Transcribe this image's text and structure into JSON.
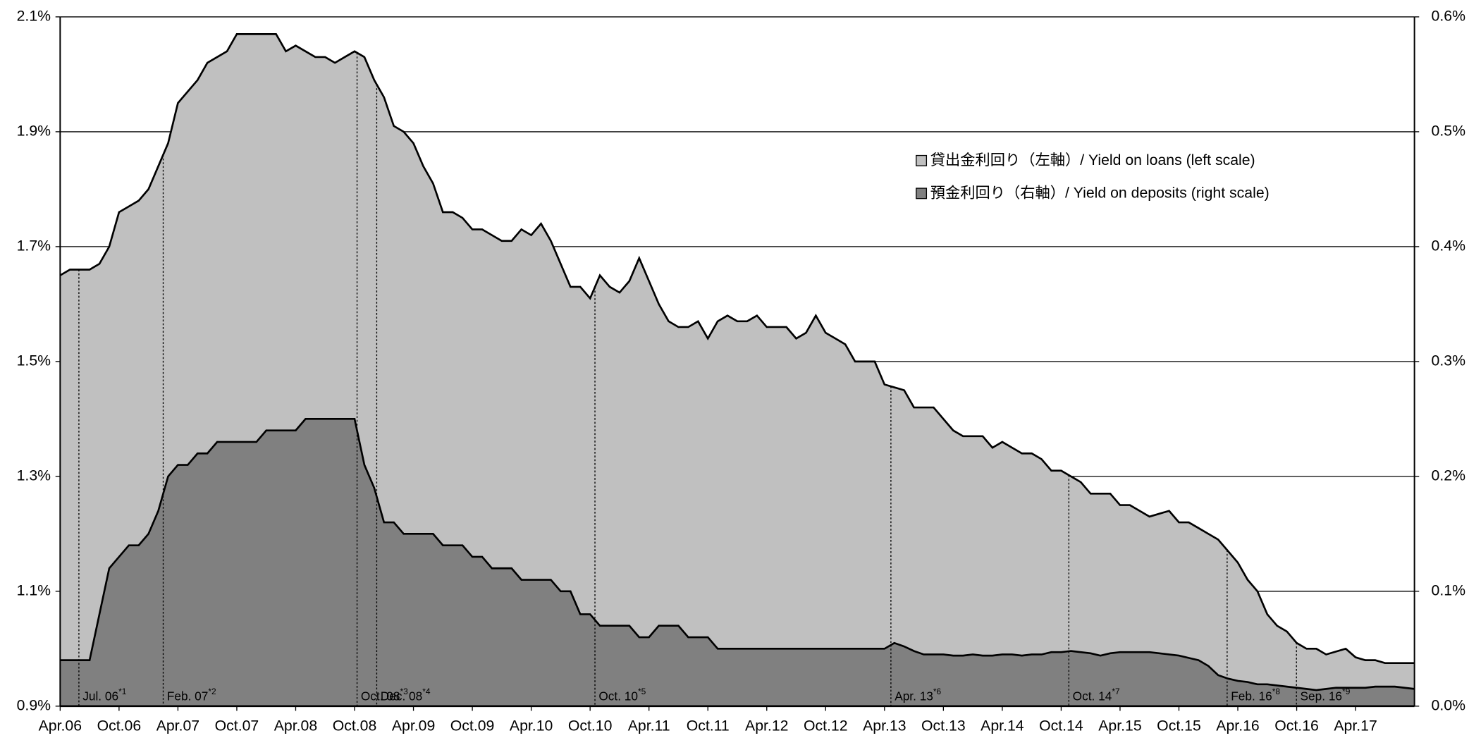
{
  "chart_data": {
    "type": "area",
    "categories": [
      "Apr.06",
      null,
      null,
      null,
      null,
      null,
      "Oct.06",
      null,
      null,
      null,
      null,
      null,
      "Apr.07",
      null,
      null,
      null,
      null,
      null,
      "Oct.07",
      null,
      null,
      null,
      null,
      null,
      "Apr.08",
      null,
      null,
      null,
      null,
      null,
      "Oct.08",
      null,
      null,
      null,
      null,
      null,
      "Apr.09",
      null,
      null,
      null,
      null,
      null,
      "Oct.09",
      null,
      null,
      null,
      null,
      null,
      "Apr.10",
      null,
      null,
      null,
      null,
      null,
      "Oct.10",
      null,
      null,
      null,
      null,
      null,
      "Apr.11",
      null,
      null,
      null,
      null,
      null,
      "Oct.11",
      null,
      null,
      null,
      null,
      null,
      "Apr.12",
      null,
      null,
      null,
      null,
      null,
      "Oct.12",
      null,
      null,
      null,
      null,
      null,
      "Apr.13",
      null,
      null,
      null,
      null,
      null,
      "Oct.13",
      null,
      null,
      null,
      null,
      null,
      "Apr.14",
      null,
      null,
      null,
      null,
      null,
      "Oct.14",
      null,
      null,
      null,
      null,
      null,
      "Apr.15",
      null,
      null,
      null,
      null,
      null,
      "Oct.15",
      null,
      null,
      null,
      null,
      null,
      "Apr.16",
      null,
      null,
      null,
      null,
      null,
      "Oct.16",
      null,
      null,
      null,
      null,
      null,
      "Apr.17",
      null,
      null,
      null,
      null,
      null,
      null
    ],
    "series": [
      {
        "name": "貸出金利回り（左軸）/ Yield on loans (left scale)",
        "color": "#c0c0c0",
        "axis": "y",
        "values": [
          1.65,
          1.66,
          1.66,
          1.66,
          1.67,
          1.7,
          1.76,
          1.77,
          1.78,
          1.8,
          1.84,
          1.88,
          1.95,
          1.97,
          1.99,
          2.02,
          2.03,
          2.04,
          2.07,
          2.07,
          2.07,
          2.07,
          2.07,
          2.04,
          2.05,
          2.04,
          2.03,
          2.03,
          2.02,
          2.03,
          2.04,
          2.03,
          1.99,
          1.96,
          1.91,
          1.9,
          1.88,
          1.84,
          1.81,
          1.76,
          1.76,
          1.75,
          1.73,
          1.73,
          1.72,
          1.71,
          1.71,
          1.73,
          1.72,
          1.74,
          1.71,
          1.67,
          1.63,
          1.63,
          1.61,
          1.65,
          1.63,
          1.62,
          1.64,
          1.68,
          1.64,
          1.6,
          1.57,
          1.56,
          1.56,
          1.57,
          1.54,
          1.57,
          1.58,
          1.57,
          1.57,
          1.58,
          1.56,
          1.56,
          1.56,
          1.54,
          1.55,
          1.58,
          1.55,
          1.54,
          1.53,
          1.5,
          1.5,
          1.5,
          1.46,
          1.455,
          1.45,
          1.42,
          1.42,
          1.42,
          1.4,
          1.38,
          1.37,
          1.37,
          1.37,
          1.35,
          1.36,
          1.35,
          1.34,
          1.34,
          1.33,
          1.31,
          1.31,
          1.3,
          1.29,
          1.27,
          1.27,
          1.27,
          1.25,
          1.25,
          1.24,
          1.23,
          1.235,
          1.24,
          1.22,
          1.22,
          1.21,
          1.2,
          1.19,
          1.17,
          1.15,
          1.12,
          1.1,
          1.06,
          1.04,
          1.03,
          1.01,
          1.0,
          1.0,
          0.99,
          0.995,
          1.0,
          0.985,
          0.98,
          0.98,
          0.975,
          0.975,
          0.975,
          0.975
        ]
      },
      {
        "name": "預金利回り（右軸）/ Yield on deposits (right scale)",
        "color": "#808080",
        "axis": "y2",
        "values": [
          0.04,
          0.04,
          0.04,
          0.04,
          0.08,
          0.12,
          0.13,
          0.14,
          0.14,
          0.15,
          0.17,
          0.2,
          0.21,
          0.21,
          0.22,
          0.22,
          0.23,
          0.23,
          0.23,
          0.23,
          0.23,
          0.24,
          0.24,
          0.24,
          0.24,
          0.25,
          0.25,
          0.25,
          0.25,
          0.25,
          0.25,
          0.21,
          0.19,
          0.16,
          0.16,
          0.15,
          0.15,
          0.15,
          0.15,
          0.14,
          0.14,
          0.14,
          0.13,
          0.13,
          0.12,
          0.12,
          0.12,
          0.11,
          0.11,
          0.11,
          0.11,
          0.1,
          0.1,
          0.08,
          0.08,
          0.07,
          0.07,
          0.07,
          0.07,
          0.06,
          0.06,
          0.07,
          0.07,
          0.07,
          0.06,
          0.06,
          0.06,
          0.05,
          0.05,
          0.05,
          0.05,
          0.05,
          0.05,
          0.05,
          0.05,
          0.05,
          0.05,
          0.05,
          0.05,
          0.05,
          0.05,
          0.05,
          0.05,
          0.05,
          0.05,
          0.055,
          0.052,
          0.048,
          0.045,
          0.045,
          0.045,
          0.044,
          0.044,
          0.045,
          0.044,
          0.044,
          0.045,
          0.045,
          0.044,
          0.045,
          0.045,
          0.047,
          0.047,
          0.048,
          0.047,
          0.046,
          0.044,
          0.046,
          0.047,
          0.047,
          0.047,
          0.047,
          0.046,
          0.045,
          0.044,
          0.042,
          0.04,
          0.035,
          0.027,
          0.024,
          0.022,
          0.021,
          0.019,
          0.019,
          0.018,
          0.017,
          0.016,
          0.015,
          0.014,
          0.015,
          0.016,
          0.016,
          0.016,
          0.016,
          0.017,
          0.017,
          0.017,
          0.016,
          0.015
        ]
      }
    ],
    "ylim": [
      0.9,
      2.1
    ],
    "yticks": [
      {
        "value": 0.9,
        "label": "0.9%"
      },
      {
        "value": 1.1,
        "label": "1.1%"
      },
      {
        "value": 1.3,
        "label": "1.3%"
      },
      {
        "value": 1.5,
        "label": "1.5%"
      },
      {
        "value": 1.7,
        "label": "1.7%"
      },
      {
        "value": 1.9,
        "label": "1.9%"
      },
      {
        "value": 2.1,
        "label": "2.1%"
      }
    ],
    "y2lim": [
      0,
      0.6
    ],
    "y2ticks": [
      {
        "value": 0,
        "label": "0.0%"
      },
      {
        "value": 0.1,
        "label": "0.1%"
      },
      {
        "value": 0.2,
        "label": "0.2%"
      },
      {
        "value": 0.3,
        "label": "0.3%"
      },
      {
        "value": 0.4,
        "label": "0.4%"
      },
      {
        "value": 0.5,
        "label": "0.5%"
      },
      {
        "value": 0.6,
        "label": "0.6%"
      }
    ],
    "grid": true,
    "legend": "upper right",
    "annotations": [
      {
        "text": "Jul. 06",
        "note": "*1"
      },
      {
        "text": "Feb. 07",
        "note": "*2"
      },
      {
        "text": "Oct. 08",
        "note": "*3"
      },
      {
        "text": "Dec. 08",
        "note": "*4"
      },
      {
        "text": "Oct. 10",
        "note": "*5"
      },
      {
        "text": "Apr. 13",
        "note": "*6"
      },
      {
        "text": "Oct. 14",
        "note": "*7"
      },
      {
        "text": "Feb. 16",
        "note": "*8"
      },
      {
        "text": "Sep. 16",
        "note": "*9"
      }
    ]
  }
}
